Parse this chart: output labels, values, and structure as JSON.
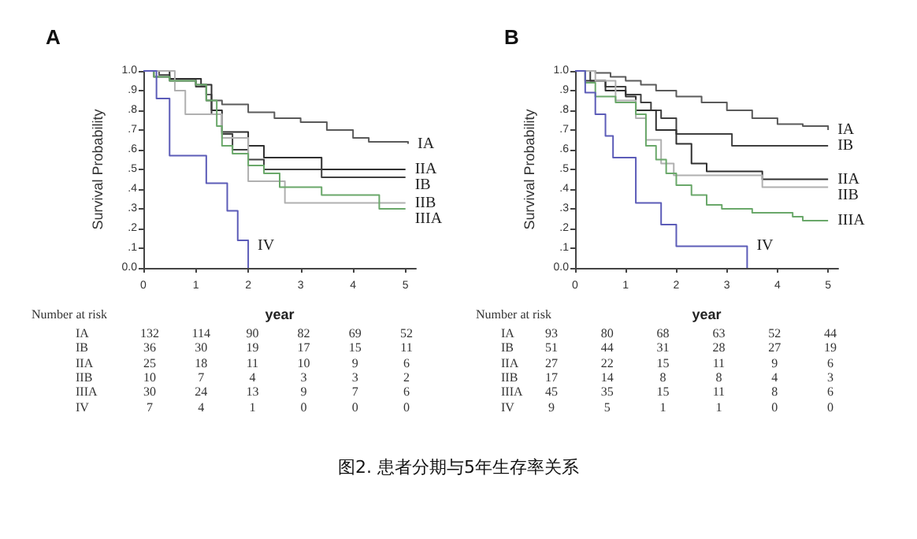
{
  "chart_data": [
    {
      "type": "step",
      "title": "A",
      "xlabel": "year",
      "ylabel": "Survival Probability",
      "xlim": [
        0,
        5.2
      ],
      "xticks": [
        0,
        1,
        2,
        3,
        4,
        5
      ],
      "ylim": [
        0,
        1
      ],
      "yticks": [
        {
          "value": 0,
          "label": "0.0"
        },
        {
          "value": 0.1,
          "label": ".1"
        },
        {
          "value": 0.2,
          "label": ".2"
        },
        {
          "value": 0.3,
          "label": ".3"
        },
        {
          "value": 0.4,
          "label": ".4"
        },
        {
          "value": 0.5,
          "label": ".5"
        },
        {
          "value": 0.6,
          "label": ".6"
        },
        {
          "value": 0.7,
          "label": ".7"
        },
        {
          "value": 0.8,
          "label": ".8"
        },
        {
          "value": 0.9,
          "label": ".9"
        },
        {
          "value": 1,
          "label": "1.0"
        }
      ],
      "grid": false,
      "legend": false,
      "series": [
        {
          "name": "IA",
          "color": "#5a5a5a",
          "x": [
            0,
            0.3,
            0.5,
            1.0,
            1.2,
            1.3,
            1.5,
            2.0,
            2.5,
            3.0,
            3.5,
            4.0,
            4.3,
            5.05
          ],
          "values": [
            1,
            0.98,
            0.96,
            0.93,
            0.88,
            0.85,
            0.83,
            0.79,
            0.76,
            0.74,
            0.7,
            0.66,
            0.64,
            0.63
          ]
        },
        {
          "name": "IIA",
          "color": "#303030",
          "x": [
            0,
            0.5,
            1.1,
            1.3,
            1.5,
            2.0,
            2.3,
            3.4,
            5.0
          ],
          "values": [
            1,
            0.96,
            0.93,
            0.8,
            0.69,
            0.62,
            0.56,
            0.5,
            0.5
          ]
        },
        {
          "name": "IB",
          "color": "#404040",
          "x": [
            0,
            0.2,
            0.5,
            1.0,
            1.2,
            1.3,
            1.5,
            1.7,
            2.0,
            2.3,
            3.4,
            5.0
          ],
          "values": [
            1,
            0.97,
            0.95,
            0.92,
            0.85,
            0.78,
            0.68,
            0.6,
            0.55,
            0.5,
            0.46,
            0.46
          ]
        },
        {
          "name": "IIB",
          "color": "#b0b0b0",
          "x": [
            0,
            0.6,
            0.8,
            1.5,
            2.0,
            2.7,
            5.0
          ],
          "values": [
            1,
            0.9,
            0.78,
            0.66,
            0.44,
            0.33,
            0.33
          ]
        },
        {
          "name": "IIIA",
          "color": "#6aa86a",
          "x": [
            0,
            0.2,
            0.5,
            1.0,
            1.2,
            1.4,
            1.5,
            1.7,
            2.0,
            2.3,
            2.6,
            3.4,
            4.5,
            5.0
          ],
          "values": [
            1,
            0.97,
            0.95,
            0.93,
            0.85,
            0.72,
            0.62,
            0.58,
            0.52,
            0.48,
            0.41,
            0.37,
            0.3,
            0.3
          ]
        },
        {
          "name": "IV",
          "color": "#5c5cb8",
          "x": [
            0,
            0.25,
            0.5,
            1.2,
            1.6,
            1.8,
            2.0
          ],
          "values": [
            1,
            0.86,
            0.57,
            0.43,
            0.29,
            0.14,
            0
          ]
        }
      ],
      "annotations": [
        "Number at risk",
        "IA 132 114 90 82 69 52",
        "IB 36 30 19 17 15 11",
        "IIA 25 18 11 10 9 6",
        "IIB 10 7 4 3 3 2",
        "IIIA 30 24 13 9 7 6",
        "IV 7 4 1 0 0 0"
      ]
    },
    {
      "type": "step",
      "title": "B",
      "xlabel": "year",
      "ylabel": "Survival Probability",
      "xlim": [
        0,
        5.2
      ],
      "xticks": [
        0,
        1,
        2,
        3,
        4,
        5
      ],
      "ylim": [
        0,
        1
      ],
      "yticks": [
        {
          "value": 0,
          "label": "0.0"
        },
        {
          "value": 0.1,
          "label": ".1"
        },
        {
          "value": 0.2,
          "label": ".2"
        },
        {
          "value": 0.3,
          "label": ".3"
        },
        {
          "value": 0.4,
          "label": ".4"
        },
        {
          "value": 0.5,
          "label": ".5"
        },
        {
          "value": 0.6,
          "label": ".6"
        },
        {
          "value": 0.7,
          "label": ".7"
        },
        {
          "value": 0.8,
          "label": ".8"
        },
        {
          "value": 0.9,
          "label": ".9"
        },
        {
          "value": 1,
          "label": "1.0"
        }
      ],
      "grid": false,
      "legend": false,
      "series": [
        {
          "name": "IA",
          "color": "#5a5a5a",
          "x": [
            0,
            0.4,
            0.7,
            1.0,
            1.3,
            1.6,
            2.0,
            2.5,
            3.0,
            3.5,
            4.0,
            4.5,
            5.0
          ],
          "values": [
            1,
            0.99,
            0.97,
            0.95,
            0.93,
            0.9,
            0.87,
            0.84,
            0.8,
            0.76,
            0.73,
            0.72,
            0.7
          ]
        },
        {
          "name": "IB",
          "color": "#404040",
          "x": [
            0,
            0.3,
            0.6,
            1.0,
            1.3,
            1.5,
            1.7,
            2.0,
            3.1,
            5.0
          ],
          "values": [
            1,
            0.95,
            0.92,
            0.88,
            0.84,
            0.8,
            0.76,
            0.68,
            0.62,
            0.62
          ]
        },
        {
          "name": "IIA",
          "color": "#303030",
          "x": [
            0,
            0.2,
            0.6,
            1.0,
            1.2,
            1.6,
            2.0,
            2.3,
            2.6,
            3.7,
            5.0
          ],
          "values": [
            1,
            0.95,
            0.9,
            0.87,
            0.8,
            0.7,
            0.63,
            0.53,
            0.49,
            0.45,
            0.45
          ]
        },
        {
          "name": "IIB",
          "color": "#b0b0b0",
          "x": [
            0,
            0.4,
            0.8,
            1.2,
            1.4,
            1.7,
            1.95,
            3.7,
            5.0
          ],
          "values": [
            1,
            0.95,
            0.85,
            0.76,
            0.65,
            0.53,
            0.47,
            0.41,
            0.41
          ]
        },
        {
          "name": "IIIA",
          "color": "#6aa86a",
          "x": [
            0,
            0.2,
            0.4,
            0.8,
            1.2,
            1.4,
            1.6,
            1.8,
            2.0,
            2.3,
            2.6,
            2.9,
            3.5,
            4.3,
            4.5,
            5.0
          ],
          "values": [
            1,
            0.94,
            0.87,
            0.84,
            0.78,
            0.62,
            0.55,
            0.48,
            0.42,
            0.37,
            0.32,
            0.3,
            0.28,
            0.26,
            0.24,
            0.24
          ]
        },
        {
          "name": "IV",
          "color": "#5c5cb8",
          "x": [
            0,
            0.2,
            0.4,
            0.6,
            0.75,
            1.2,
            1.7,
            2.0,
            3.4
          ],
          "values": [
            1,
            0.89,
            0.78,
            0.67,
            0.56,
            0.33,
            0.22,
            0.11,
            0
          ]
        }
      ],
      "annotations": [
        "Number at risk",
        "IA 93 80 68 63 52 44",
        "IB 51 44 31 28 27 19",
        "IIA 27 22 15 11 9 6",
        "IIB 17 14 8 8 4 3",
        "IIIA 45 35 15 11 8 6",
        "IV 9 5 1 1 0 0"
      ]
    },
    {
      "type": "other",
      "title": "图2. 患者分期与5年生存率关系"
    }
  ]
}
